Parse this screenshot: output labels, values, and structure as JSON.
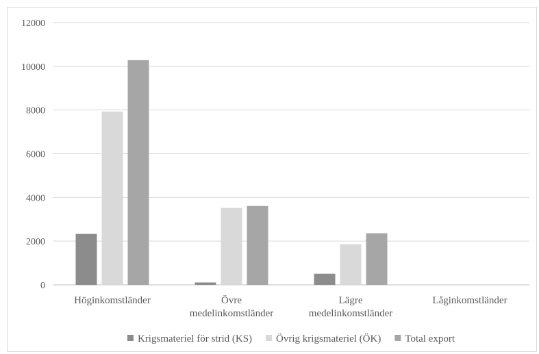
{
  "chart_data": {
    "type": "bar",
    "categories": [
      [
        "Höginkomstländer"
      ],
      [
        "Övre",
        "medelinkomstländer"
      ],
      [
        "Lägre",
        "medelinkomstländer"
      ],
      [
        "Låginkomstländer"
      ]
    ],
    "series": [
      {
        "name": "Krigsmateriel för strid (KS)",
        "color": "#8c8c8c",
        "values": [
          2330,
          110,
          510,
          0
        ]
      },
      {
        "name": "Övrig krigsmateriel (ÖK)",
        "color": "#d9d9d9",
        "values": [
          7930,
          3520,
          1860,
          0
        ]
      },
      {
        "name": "Total export",
        "color": "#a6a6a6",
        "values": [
          10280,
          3610,
          2360,
          0
        ]
      }
    ],
    "yticks": [
      "0",
      "2000",
      "4000",
      "6000",
      "8000",
      "10000",
      "12000"
    ],
    "ylim": [
      0,
      12000
    ],
    "grid": true,
    "legend_position": "bottom",
    "title": "",
    "xlabel": "",
    "ylabel": ""
  }
}
